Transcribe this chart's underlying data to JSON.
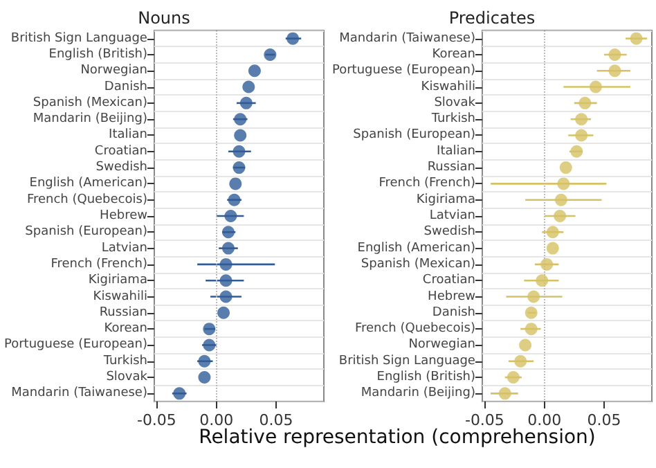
{
  "chart_data": [
    {
      "type": "scatter",
      "orientation": "horizontal",
      "title": "Nouns",
      "xlabel": "Relative representation (comprehension)",
      "color": "#2f5d98",
      "marker": "circle",
      "grid": "y",
      "categories": [
        "British Sign Language",
        "English (British)",
        "Norwegian",
        "Danish",
        "Spanish (Mexican)",
        "Mandarin (Beijing)",
        "Italian",
        "Croatian",
        "Swedish",
        "English (American)",
        "French (Quebecois)",
        "Hebrew",
        "Spanish (European)",
        "Latvian",
        "French (French)",
        "Kigiriama",
        "Kiswahili",
        "Russian",
        "Korean",
        "Portuguese (European)",
        "Turkish",
        "Slovak",
        "Mandarin (Taiwanese)"
      ],
      "values": [
        0.064,
        0.045,
        0.032,
        0.027,
        0.025,
        0.02,
        0.02,
        0.019,
        0.019,
        0.016,
        0.015,
        0.012,
        0.01,
        0.01,
        0.008,
        0.008,
        0.008,
        0.006,
        -0.006,
        -0.006,
        -0.01,
        -0.01,
        -0.031
      ],
      "errors": [
        [
          0.058,
          0.071
        ],
        [
          0.041,
          0.049
        ],
        null,
        null,
        [
          0.017,
          0.033
        ],
        [
          0.014,
          0.026
        ],
        null,
        [
          0.01,
          0.029
        ],
        [
          0.014,
          0.024
        ],
        null,
        [
          0.009,
          0.021
        ],
        [
          0.0,
          0.023
        ],
        [
          0.005,
          0.016
        ],
        [
          0.002,
          0.018
        ],
        [
          -0.016,
          0.049
        ],
        [
          -0.009,
          0.023
        ],
        [
          -0.005,
          0.021
        ],
        null,
        [
          -0.01,
          -0.001
        ],
        [
          -0.012,
          0.0
        ],
        [
          -0.016,
          -0.003
        ],
        null,
        [
          -0.037,
          -0.025
        ]
      ],
      "xlim": [
        -0.052,
        0.09
      ],
      "xticks": [
        {
          "value": -0.05,
          "label": "-0.05"
        },
        {
          "value": 0,
          "label": "0.00"
        },
        {
          "value": 0.05,
          "label": "0.05"
        }
      ],
      "ref_lines": [
        {
          "axis": "x",
          "value": 0,
          "color": "#bbbbbb",
          "line_style": "dotted"
        }
      ]
    },
    {
      "type": "scatter",
      "orientation": "horizontal",
      "title": "Predicates",
      "color": "#d6c265",
      "marker": "circle",
      "grid": "y",
      "categories": [
        "Mandarin (Taiwanese)",
        "Korean",
        "Portuguese (European)",
        "Kiswahili",
        "Slovak",
        "Turkish",
        "Spanish (European)",
        "Italian",
        "Russian",
        "French (French)",
        "Kigiriama",
        "Latvian",
        "Swedish",
        "English (American)",
        "Spanish (Mexican)",
        "Croatian",
        "Hebrew",
        "Danish",
        "French (Quebecois)",
        "Norwegian",
        "British Sign Language",
        "English (British)",
        "Mandarin (Beijing)"
      ],
      "values": [
        0.077,
        0.059,
        0.059,
        0.043,
        0.034,
        0.031,
        0.031,
        0.027,
        0.018,
        0.016,
        0.014,
        0.013,
        0.007,
        0.007,
        0.002,
        -0.002,
        -0.009,
        -0.011,
        -0.011,
        -0.016,
        -0.02,
        -0.026,
        -0.033
      ],
      "errors": [
        [
          0.068,
          0.086
        ],
        [
          0.05,
          0.069
        ],
        [
          0.044,
          0.072
        ],
        [
          0.016,
          0.072
        ],
        [
          0.025,
          0.044
        ],
        [
          0.022,
          0.039
        ],
        [
          0.02,
          0.041
        ],
        [
          0.021,
          0.032
        ],
        null,
        [
          -0.045,
          0.052
        ],
        [
          -0.016,
          0.048
        ],
        [
          0.0,
          0.026
        ],
        [
          -0.002,
          0.016
        ],
        null,
        [
          -0.008,
          0.012
        ],
        [
          -0.017,
          0.012
        ],
        [
          -0.032,
          0.015
        ],
        [
          -0.014,
          -0.007
        ],
        [
          -0.02,
          -0.003
        ],
        null,
        [
          -0.03,
          -0.009
        ],
        [
          -0.033,
          -0.019
        ],
        [
          -0.045,
          -0.022
        ]
      ],
      "xlim": [
        -0.052,
        0.09
      ],
      "xticks": [
        {
          "value": -0.05,
          "label": "-0.05"
        },
        {
          "value": 0,
          "label": "0.00"
        },
        {
          "value": 0.05,
          "label": "0.05"
        }
      ],
      "ref_lines": [
        {
          "axis": "x",
          "value": 0,
          "color": "#bbbbbb",
          "line_style": "dotted"
        }
      ]
    }
  ]
}
